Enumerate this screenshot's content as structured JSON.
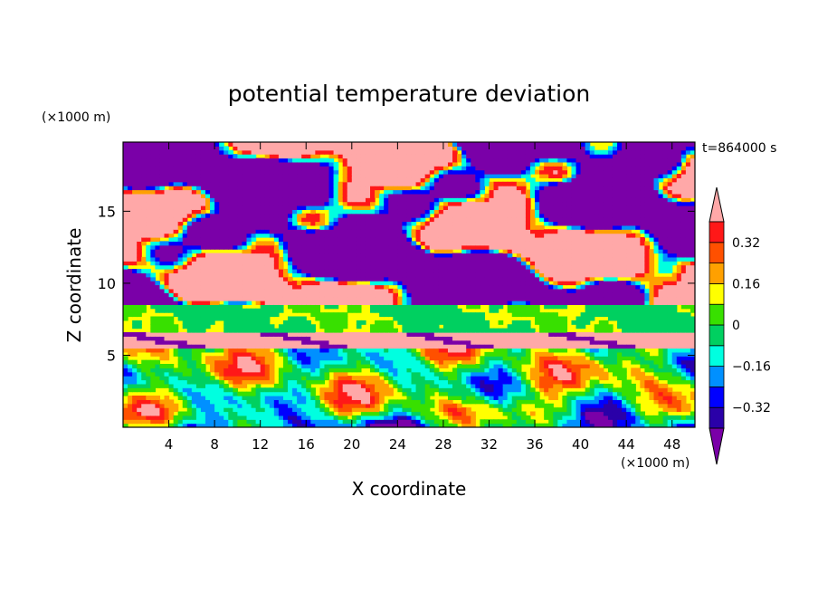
{
  "chart_data": {
    "type": "heatmap",
    "title": "potential temperature deviation",
    "xlabel": "X coordinate",
    "ylabel": "Z coordinate",
    "x_unit": "(×1000 m)",
    "y_unit": "(×1000 m)",
    "time_label": "t=864000 s",
    "xlim": [
      0,
      50
    ],
    "ylim": [
      0,
      19.8
    ],
    "xticks": [
      4,
      8,
      12,
      16,
      20,
      24,
      28,
      32,
      36,
      40,
      44,
      48
    ],
    "yticks": [
      5,
      10,
      15
    ],
    "colorbar": {
      "levels": [
        -0.4,
        -0.32,
        -0.24,
        -0.16,
        -0.08,
        0,
        0.08,
        0.16,
        0.24,
        0.32,
        0.4
      ],
      "labeled_ticks": [
        {
          "value": 0.32,
          "label": "0.32"
        },
        {
          "value": 0.16,
          "label": "0.16"
        },
        {
          "value": 0,
          "label": "0"
        },
        {
          "value": -0.16,
          "label": "−0.16"
        },
        {
          "value": -0.32,
          "label": "−0.32"
        }
      ],
      "colors": [
        "#7a00a8",
        "#2a00a8",
        "#0000ff",
        "#0090ff",
        "#00ffe0",
        "#00d060",
        "#38e000",
        "#ffff00",
        "#ffa000",
        "#ff5000",
        "#ff1818",
        "#ffa8a8"
      ],
      "extend": "both"
    },
    "bands": [
      {
        "z_min": 0.0,
        "z_max": 5.4,
        "description": "turbulent mixed layer",
        "level_index": 7
      },
      {
        "z_min": 5.4,
        "z_max": 6.6,
        "description": "pink warm layer",
        "level_index": 11
      },
      {
        "z_min": 6.6,
        "z_max": 8.4,
        "description": "yellow/green stable layer",
        "level_index": 7
      },
      {
        "z_min": 8.4,
        "z_max": 9.8,
        "description": "pink/purple mixed",
        "level_index": 11
      },
      {
        "z_min": 9.8,
        "z_max": 19.8,
        "description": "alternating purple and pink patches",
        "level_index": 0
      }
    ]
  }
}
